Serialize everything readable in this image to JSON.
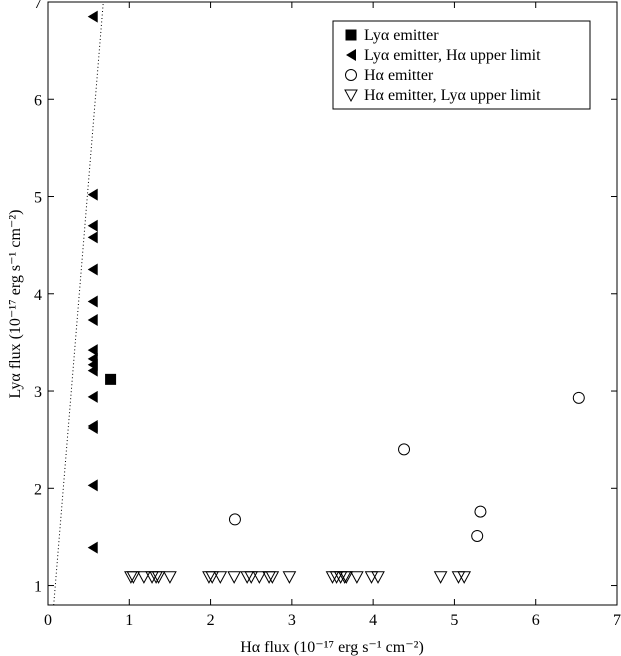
{
  "chart_data": {
    "type": "scatter",
    "title": "",
    "xlabel": "Hα flux (10⁻¹⁷ erg s⁻¹ cm⁻²)",
    "ylabel": "Lyα flux (10⁻¹⁷ erg s⁻¹ cm⁻²)",
    "xlim": [
      0,
      7
    ],
    "ylim": [
      0.8,
      7
    ],
    "xticks": [
      0,
      1,
      2,
      3,
      4,
      5,
      6,
      7
    ],
    "yticks": [
      1,
      2,
      3,
      4,
      5,
      6,
      7
    ],
    "grid": false,
    "legend_position": "top-right",
    "reference_line": {
      "style": "dotted",
      "points": [
        [
          0.07,
          0.8
        ],
        [
          0.7,
          7.2
        ]
      ]
    },
    "series": [
      {
        "name": "Lyα emitter",
        "marker": "filled-square",
        "points": [
          [
            0.77,
            3.12
          ]
        ]
      },
      {
        "name": "Lyα emitter, Hα upper limit",
        "marker": "filled-left-triangle",
        "points": [
          [
            0.55,
            6.85
          ],
          [
            0.55,
            5.02
          ],
          [
            0.55,
            4.7
          ],
          [
            0.55,
            4.58
          ],
          [
            0.55,
            4.25
          ],
          [
            0.55,
            3.92
          ],
          [
            0.55,
            3.73
          ],
          [
            0.55,
            3.42
          ],
          [
            0.55,
            3.33
          ],
          [
            0.55,
            3.27
          ],
          [
            0.55,
            3.21
          ],
          [
            0.55,
            2.94
          ],
          [
            0.55,
            2.64
          ],
          [
            0.55,
            2.62
          ],
          [
            0.55,
            2.03
          ],
          [
            0.55,
            1.39
          ]
        ]
      },
      {
        "name": "Hα emitter",
        "marker": "open-circle",
        "points": [
          [
            2.3,
            1.68
          ],
          [
            4.38,
            2.4
          ],
          [
            5.28,
            1.51
          ],
          [
            5.32,
            1.76
          ],
          [
            6.53,
            2.93
          ]
        ]
      },
      {
        "name": "Hα emitter, Lyα upper limit",
        "marker": "open-down-triangle",
        "points": [
          [
            1.02,
            1.09
          ],
          [
            1.05,
            1.09
          ],
          [
            1.18,
            1.09
          ],
          [
            1.28,
            1.09
          ],
          [
            1.33,
            1.09
          ],
          [
            1.36,
            1.09
          ],
          [
            1.5,
            1.09
          ],
          [
            1.98,
            1.09
          ],
          [
            2.02,
            1.09
          ],
          [
            2.12,
            1.09
          ],
          [
            2.29,
            1.09
          ],
          [
            2.45,
            1.09
          ],
          [
            2.5,
            1.09
          ],
          [
            2.6,
            1.09
          ],
          [
            2.72,
            1.09
          ],
          [
            2.76,
            1.09
          ],
          [
            2.97,
            1.09
          ],
          [
            3.5,
            1.09
          ],
          [
            3.55,
            1.09
          ],
          [
            3.6,
            1.09
          ],
          [
            3.65,
            1.09
          ],
          [
            3.67,
            1.09
          ],
          [
            3.8,
            1.09
          ],
          [
            3.98,
            1.09
          ],
          [
            4.06,
            1.09
          ],
          [
            4.83,
            1.09
          ],
          [
            5.05,
            1.09
          ],
          [
            5.12,
            1.09
          ]
        ]
      }
    ]
  }
}
